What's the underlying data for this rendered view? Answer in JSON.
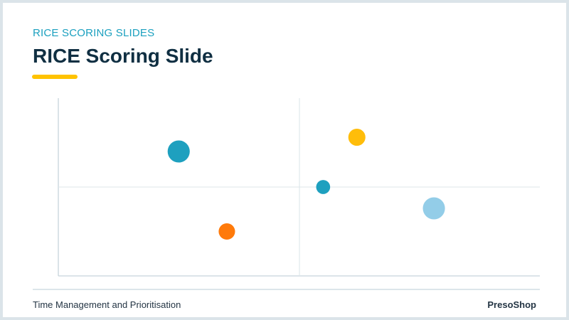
{
  "header": {
    "eyebrow": "RICE SCORING SLIDES",
    "title": "RICE Scoring Slide"
  },
  "footer": {
    "left_text": "Time Management and Prioritisation",
    "right_text": "PresoShop"
  },
  "colors": {
    "eyebrow": "#1ba0bf",
    "title": "#102f42",
    "accent": "#ffc300",
    "bubble_blue": "#1ea0bf",
    "bubble_yellow": "#ffbd0a",
    "bubble_orange": "#ff7a0a",
    "bubble_light_blue": "#93cde8",
    "grid": "#dce6ea"
  },
  "chart_data": {
    "type": "scatter",
    "title": "",
    "xlabel": "",
    "ylabel": "",
    "xlim": [
      0,
      100
    ],
    "ylim": [
      0,
      100
    ],
    "grid": "center crosshair",
    "points": [
      {
        "x": 25,
        "y": 70,
        "size": 2.0,
        "color": "#1ea0bf"
      },
      {
        "x": 35,
        "y": 25,
        "size": 1.1,
        "color": "#ff7a0a"
      },
      {
        "x": 55,
        "y": 50,
        "size": 0.8,
        "color": "#1ea0bf"
      },
      {
        "x": 62,
        "y": 78,
        "size": 1.2,
        "color": "#ffbd0a"
      },
      {
        "x": 78,
        "y": 38,
        "size": 2.0,
        "color": "#93cde8"
      }
    ]
  }
}
